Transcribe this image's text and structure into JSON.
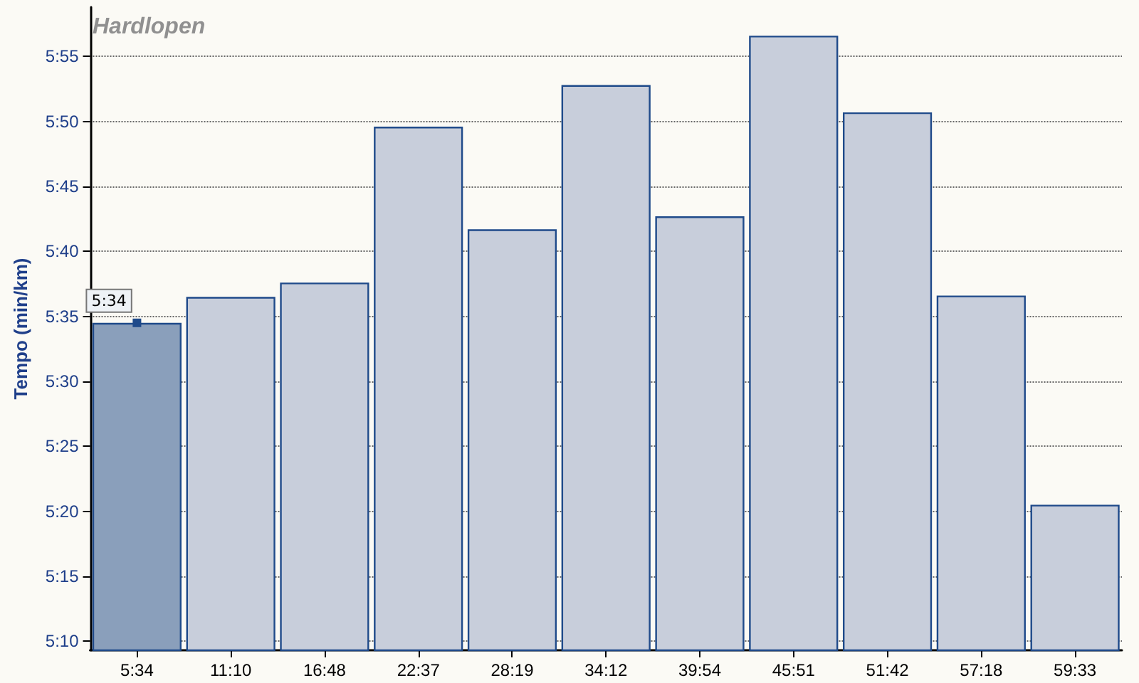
{
  "chart_data": {
    "type": "bar",
    "title": "Hardlopen",
    "ylabel": "Tempo (min/km)",
    "categories": [
      "5:34",
      "11:10",
      "16:48",
      "22:37",
      "28:19",
      "34:12",
      "39:54",
      "45:51",
      "51:42",
      "57:18",
      "59:33"
    ],
    "values": [
      334.5,
      336.5,
      337.6,
      349.6,
      341.7,
      352.8,
      342.7,
      356.6,
      350.7,
      336.6,
      320.5
    ],
    "colors": [
      "#8a9fbb",
      "#c8cedb",
      "#c8cedb",
      "#c8cedb",
      "#c8cedb",
      "#c8cedb",
      "#c8cedb",
      "#c8cedb",
      "#c8cedb",
      "#c8cedb",
      "#c8cedb"
    ],
    "ylim": [
      309.3,
      358.8
    ],
    "yticks": [
      {
        "value": 310,
        "label": "5:10"
      },
      {
        "value": 315,
        "label": "5:15"
      },
      {
        "value": 320,
        "label": "5:20"
      },
      {
        "value": 325,
        "label": "5:25"
      },
      {
        "value": 330,
        "label": "5:30"
      },
      {
        "value": 335,
        "label": "5:35"
      },
      {
        "value": 340,
        "label": "5:40"
      },
      {
        "value": 345,
        "label": "5:45"
      },
      {
        "value": 350,
        "label": "5:50"
      },
      {
        "value": 355,
        "label": "5:55"
      }
    ],
    "grid": "y",
    "annotations": [
      {
        "text": "5:34",
        "x": "5:34",
        "y": 334.5
      }
    ]
  }
}
